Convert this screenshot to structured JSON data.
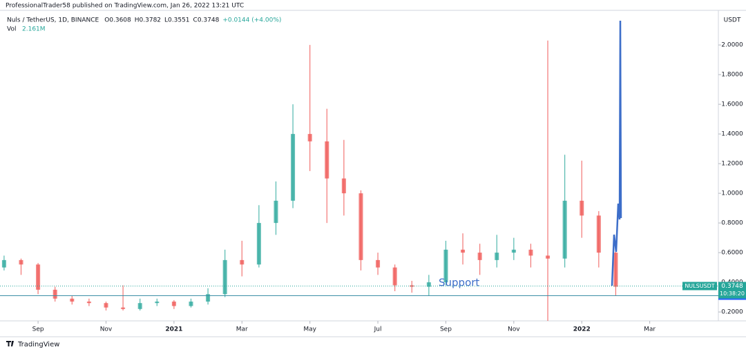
{
  "chart_data": {
    "type": "candlestick",
    "published": "ProfessionalTrader58 published on TradingView.com, Jan 26, 2022 13:21 UTC",
    "title": "Nuls / TetherUS, 1D, BINANCE",
    "ohlc_legend": [
      "O0.3608",
      "H0.3782",
      "L0.3551",
      "C0.3748",
      "+0.0144 (+4.00%)"
    ],
    "volume_label": "Vol",
    "volume_value": "2.161M",
    "currency": "USDT",
    "symbol": "NULSUSDT",
    "last_price": 0.3748,
    "countdown": "10:38:20",
    "support_level": 0.3096,
    "support_label": "Support",
    "brand": "TradingView",
    "up_color": "#26a69a",
    "down_color": "#ef5350",
    "x": [
      8.0,
      8.5,
      9.0,
      9.5,
      10.0,
      10.5,
      11.0,
      11.5,
      12.0,
      12.5,
      13.0,
      13.5,
      14.0,
      14.5,
      15.0,
      15.5,
      16.0,
      16.5,
      17.0,
      17.5,
      18.0,
      18.5,
      19.0,
      19.5,
      20.0,
      20.5,
      21.0,
      21.5,
      22.0,
      22.5,
      23.0,
      23.5,
      24.0,
      24.5,
      25.0,
      25.5,
      26.0
    ],
    "open": [
      0.5,
      0.55,
      0.52,
      0.35,
      0.29,
      0.27,
      0.26,
      0.23,
      0.22,
      0.26,
      0.27,
      0.24,
      0.27,
      0.32,
      0.55,
      0.52,
      0.8,
      0.95,
      1.4,
      1.35,
      1.1,
      1.0,
      0.55,
      0.5,
      0.38,
      0.37,
      0.4,
      0.62,
      0.6,
      0.55,
      0.6,
      0.62,
      0.58,
      0.56,
      0.95,
      0.85,
      0.6
    ],
    "high": [
      0.58,
      0.56,
      0.53,
      0.37,
      0.31,
      0.29,
      0.27,
      0.38,
      0.29,
      0.29,
      0.28,
      0.29,
      0.36,
      0.62,
      0.68,
      0.92,
      1.08,
      1.6,
      2.0,
      1.57,
      1.36,
      1.02,
      0.6,
      0.52,
      0.41,
      0.45,
      0.68,
      0.73,
      0.66,
      0.72,
      0.7,
      0.66,
      2.03,
      1.26,
      1.22,
      0.88,
      0.62
    ],
    "low": [
      0.48,
      0.45,
      0.32,
      0.27,
      0.25,
      0.24,
      0.21,
      0.21,
      0.21,
      0.24,
      0.22,
      0.23,
      0.25,
      0.3,
      0.44,
      0.5,
      0.72,
      0.9,
      1.15,
      0.8,
      0.85,
      0.48,
      0.45,
      0.34,
      0.33,
      0.31,
      0.38,
      0.52,
      0.45,
      0.5,
      0.55,
      0.5,
      0.14,
      0.5,
      0.7,
      0.5,
      0.31
    ],
    "close": [
      0.55,
      0.52,
      0.35,
      0.29,
      0.27,
      0.26,
      0.23,
      0.22,
      0.26,
      0.27,
      0.24,
      0.27,
      0.32,
      0.55,
      0.52,
      0.8,
      0.95,
      1.4,
      1.35,
      1.1,
      1.0,
      0.55,
      0.5,
      0.38,
      0.37,
      0.4,
      0.62,
      0.6,
      0.55,
      0.6,
      0.62,
      0.58,
      0.56,
      0.95,
      0.85,
      0.6,
      0.37
    ],
    "xlim": [
      7.88,
      29.02
    ],
    "xticks": [
      {
        "value": 9,
        "label": "Sep"
      },
      {
        "value": 11,
        "label": "Nov"
      },
      {
        "value": 13,
        "label": "2021"
      },
      {
        "value": 15,
        "label": "Mar"
      },
      {
        "value": 17,
        "label": "May"
      },
      {
        "value": 19,
        "label": "Jul"
      },
      {
        "value": 21,
        "label": "Sep"
      },
      {
        "value": 23,
        "label": "Nov"
      },
      {
        "value": 25,
        "label": "2022"
      },
      {
        "value": 27,
        "label": "Mar"
      }
    ],
    "ylim": [
      0.14,
      2.21
    ],
    "yticks": [
      {
        "value": 0.2,
        "label": "0.2000"
      },
      {
        "value": 0.4,
        "label": "0.4000"
      },
      {
        "value": 0.6,
        "label": "0.6000"
      },
      {
        "value": 0.8,
        "label": "0.8000"
      },
      {
        "value": 1.0,
        "label": "1.0000"
      },
      {
        "value": 1.2,
        "label": "1.2000"
      },
      {
        "value": 1.4,
        "label": "1.4000"
      },
      {
        "value": 1.6,
        "label": "1.6000"
      },
      {
        "value": 1.8,
        "label": "1.8000"
      },
      {
        "value": 2.0,
        "label": "2.0000"
      }
    ]
  }
}
